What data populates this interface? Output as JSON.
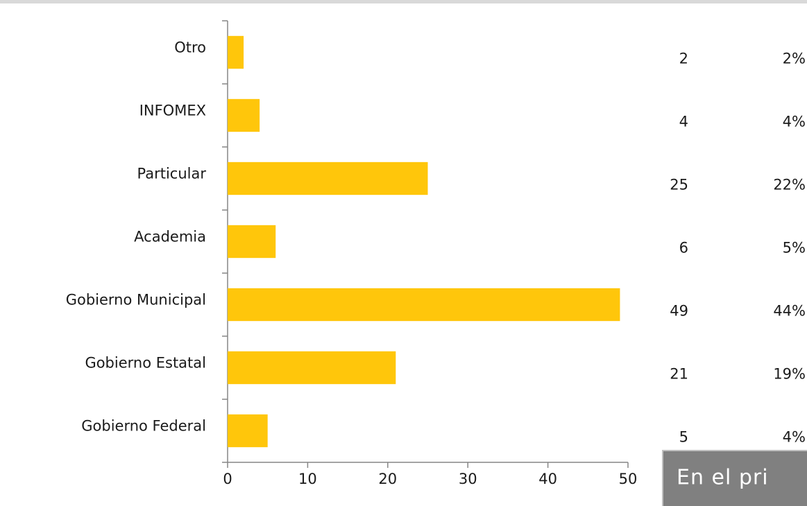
{
  "chart_data": {
    "type": "barh",
    "categories": [
      "Otro",
      "INFOMEX",
      "Particular",
      "Academia",
      "Gobierno Municipal",
      "Gobierno Estatal",
      "Gobierno Federal"
    ],
    "values": [
      2,
      4,
      25,
      6,
      49,
      21,
      5
    ],
    "percent_labels": [
      "2%",
      "4%",
      "22%",
      "5%",
      "44%",
      "19%",
      "4%"
    ],
    "color": "#ffc60b",
    "xlim": [
      0,
      50
    ],
    "xticks": [
      0,
      10,
      20,
      30,
      40,
      50
    ],
    "grid": false
  },
  "overlay_text": "En el pri"
}
